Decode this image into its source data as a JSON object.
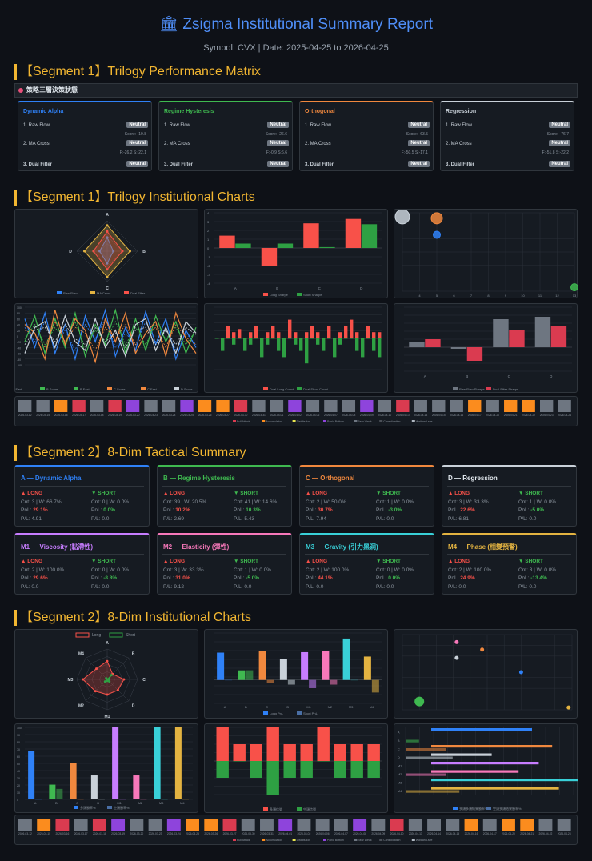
{
  "report": {
    "icon": "bank-icon",
    "title": "Zsigma Institutional Summary Report",
    "subtitle": "Symbol: CVX | Date: 2025-04-25 to 2026-04-25"
  },
  "sections": {
    "s1": "【Segment 1】Trilogy Performance Matrix",
    "s2": "【Segment 1】Trilogy Institutional Charts",
    "s3": "【Segment 2】8-Dim Tactical Summary",
    "s4": "【Segment 2】8-Dim Institutional Charts"
  },
  "matrix_bar": "策略三層決策狀態",
  "colors": {
    "A": "#2f81f7",
    "B": "#3fb950",
    "C": "#f0883e",
    "D": "#c9d1d9",
    "M1": "#c77dff",
    "M2": "#f778ba",
    "M3": "#39d0d8",
    "M4": "#e3b341",
    "long": "#f85149",
    "short": "#3fb950"
  },
  "matrix": [
    {
      "name": "Dynamic Alpha",
      "rows": [
        {
          "label": "1. Raw Flow",
          "badge": "Neutral"
        },
        {
          "label": "2. MA Cross",
          "badge": "Neutral"
        },
        {
          "label": "3. Dual Filter",
          "badge": "Neutral"
        }
      ],
      "sub1": "Score: -19.8",
      "sub2": "F:-26.2 S:-22.1"
    },
    {
      "name": "Regime Hysteresis",
      "rows": [
        {
          "label": "1. Raw Flow",
          "badge": "Neutral"
        },
        {
          "label": "2. MA Cross",
          "badge": "Neutral"
        },
        {
          "label": "3. Dual Filter",
          "badge": "Neutral"
        }
      ],
      "sub1": "Score: -26.6",
      "sub2": "F:-0.9 S:6.6"
    },
    {
      "name": "Orthogonal",
      "rows": [
        {
          "label": "1. Raw Flow",
          "badge": "Neutral"
        },
        {
          "label": "2. MA Cross",
          "badge": "Neutral"
        },
        {
          "label": "3. Dual Filter",
          "badge": "Neutral"
        }
      ],
      "sub1": "Score: -63.5",
      "sub2": "F:-50.5 S:-17.1"
    },
    {
      "name": "Regression",
      "rows": [
        {
          "label": "1. Raw Flow",
          "badge": "Neutral"
        },
        {
          "label": "2. MA Cross",
          "badge": "Neutral"
        },
        {
          "label": "3. Dual Filter",
          "badge": "Neutral"
        }
      ],
      "sub1": "Score: -76.7",
      "sub2": "F:-51.8 S:-22.2"
    }
  ],
  "tactical": [
    {
      "name": "A — Dynamic Alpha",
      "long": {
        "cnt": "Cnt: 3 | W: 66.7%",
        "pnl": "29.1%",
        "pf": "P/L: 4.91"
      },
      "short": {
        "cnt": "Cnt: 0 | W: 0.0%",
        "pnl": "0.0%",
        "pf": "P/L: 0.0"
      }
    },
    {
      "name": "B — Regime Hysteresis",
      "long": {
        "cnt": "Cnt: 39 | W: 20.5%",
        "pnl": "10.2%",
        "pf": "P/L: 2.69"
      },
      "short": {
        "cnt": "Cnt: 41 | W: 14.6%",
        "pnl": "10.3%",
        "pf": "P/L: 5.43"
      }
    },
    {
      "name": "C — Orthogonal",
      "long": {
        "cnt": "Cnt: 2 | W: 50.0%",
        "pnl": "30.7%",
        "pf": "P/L: 7.94"
      },
      "short": {
        "cnt": "Cnt: 1 | W: 0.0%",
        "pnl": "-3.0%",
        "pf": "P/L: 0.0"
      }
    },
    {
      "name": "D — Regression",
      "long": {
        "cnt": "Cnt: 3 | W: 33.3%",
        "pnl": "22.6%",
        "pf": "P/L: 6.81"
      },
      "short": {
        "cnt": "Cnt: 1 | W: 0.0%",
        "pnl": "-5.0%",
        "pf": "P/L: 0.0"
      }
    },
    {
      "name": "M1 — Viscosity (黏滯性)",
      "long": {
        "cnt": "Cnt: 2 | W: 100.0%",
        "pnl": "29.6%",
        "pf": "P/L: 0.0"
      },
      "short": {
        "cnt": "Cnt: 0 | W: 0.0%",
        "pnl": "-8.8%",
        "pf": "P/L: 0.0"
      }
    },
    {
      "name": "M2 — Elasticity (彈性)",
      "long": {
        "cnt": "Cnt: 3 | W: 33.3%",
        "pnl": "31.0%",
        "pf": "P/L: 9.12"
      },
      "short": {
        "cnt": "Cnt: 1 | W: 0.0%",
        "pnl": "-5.0%",
        "pf": "P/L: 0.0"
      }
    },
    {
      "name": "M3 — Gravity (引力黑洞)",
      "long": {
        "cnt": "Cnt: 2 | W: 100.0%",
        "pnl": "44.1%",
        "pf": "P/L: 0.0"
      },
      "short": {
        "cnt": "Cnt: 0 | W: 0.0%",
        "pnl": "0.0%",
        "pf": "P/L: 0.0"
      }
    },
    {
      "name": "M4 — Phase (相變預警)",
      "long": {
        "cnt": "Cnt: 2 | W: 100.0%",
        "pnl": "24.9%",
        "pf": "P/L: 0.0"
      },
      "short": {
        "cnt": "Cnt: 3 | W: 0.0%",
        "pnl": "-13.4%",
        "pf": "P/L: 0.0"
      }
    }
  ],
  "labels": {
    "long": "▲ LONG",
    "short": "▼ SHORT",
    "pnl": "PnL: "
  },
  "chart_data": [
    {
      "id": "radar1",
      "type": "radar",
      "axes": [
        "A",
        "B",
        "C",
        "D"
      ],
      "series": [
        {
          "name": "Raw Flow",
          "values": [
            45,
            20,
            40,
            25
          ]
        },
        {
          "name": "MA Cross",
          "values": [
            85,
            75,
            85,
            75
          ]
        },
        {
          "name": "Dual Filter",
          "values": [
            65,
            50,
            60,
            45
          ]
        }
      ],
      "ylim": [
        0,
        100
      ]
    },
    {
      "id": "bar1",
      "type": "bar",
      "categories": [
        "A",
        "B",
        "C",
        "D"
      ],
      "series": [
        {
          "name": "Long Sharpe",
          "values": [
            1.4,
            -2.0,
            2.8,
            3.3
          ]
        },
        {
          "name": "Short Sharpe",
          "values": [
            0.5,
            0.5,
            0.1,
            2.7
          ]
        }
      ],
      "ylim": [
        -4,
        4
      ],
      "yticks": [
        "4",
        "3",
        "2",
        "1",
        "0",
        "-1",
        "-2",
        "-3",
        "-4"
      ]
    },
    {
      "id": "scatter1",
      "type": "scatter",
      "points": [
        {
          "x": 3,
          "y": 95,
          "size": 18
        },
        {
          "x": 5,
          "y": 93,
          "size": 14
        },
        {
          "x": 5,
          "y": 72,
          "size": 9
        },
        {
          "x": 13,
          "y": 5,
          "size": 9
        }
      ],
      "xticks": [
        "4",
        "5",
        "6",
        "7",
        "8",
        "9",
        "10",
        "11",
        "12",
        "13"
      ]
    },
    {
      "id": "line1",
      "type": "line",
      "series": [
        {
          "name": "A Score",
          "values": [
            60,
            -40,
            80,
            -60,
            40,
            -80,
            70,
            -20,
            90,
            -70,
            30,
            -50,
            85,
            -30,
            60,
            -80,
            20,
            -40
          ]
        },
        {
          "name": "A Fast",
          "values": [
            30,
            -20,
            50,
            -40,
            20,
            -50,
            40,
            -10,
            60,
            -40,
            10,
            -30,
            50,
            -20,
            30,
            -50,
            10,
            -30
          ]
        },
        {
          "name": "B Score",
          "values": [
            -20,
            70,
            -60,
            60,
            -40,
            80,
            -70,
            40,
            -30,
            90,
            -60,
            60,
            -50,
            70,
            -20,
            50,
            -60,
            30
          ]
        },
        {
          "name": "B Fast",
          "values": [
            -10,
            40,
            -30,
            30,
            -20,
            50,
            -40,
            20,
            -20,
            50,
            -30,
            30,
            -30,
            40,
            -10,
            30,
            -30,
            20
          ]
        },
        {
          "name": "C Score",
          "values": [
            40,
            10,
            -80,
            90,
            -30,
            60,
            20,
            -90,
            60,
            -20,
            80,
            -60,
            10,
            50,
            -70,
            80,
            -10,
            -60
          ]
        },
        {
          "name": "C Fast",
          "values": [
            20,
            5,
            -40,
            50,
            -20,
            30,
            10,
            -50,
            30,
            -10,
            40,
            -30,
            5,
            30,
            -40,
            40,
            -5,
            -30
          ]
        },
        {
          "name": "D Score",
          "values": [
            -60,
            30,
            50,
            -40,
            70,
            -20,
            -50,
            60,
            -40,
            20,
            -70,
            40,
            60,
            -50,
            30,
            -60,
            50,
            10
          ]
        },
        {
          "name": "D Fast",
          "values": [
            -30,
            20,
            30,
            -20,
            40,
            -10,
            -30,
            30,
            -20,
            10,
            -40,
            20,
            30,
            -30,
            20,
            -30,
            30,
            5
          ]
        }
      ],
      "ylim": [
        -100,
        100
      ]
    },
    {
      "id": "bar2",
      "type": "bar",
      "series": [
        {
          "name": "Dual Long Count",
          "values": [
            0,
            0,
            2,
            1,
            1.5,
            0,
            1,
            2,
            0,
            1,
            2,
            1,
            0,
            3,
            1,
            0,
            1,
            2,
            1,
            0,
            2,
            0,
            1,
            2,
            3,
            1,
            0,
            2,
            1,
            1
          ]
        },
        {
          "name": "Dual Short Count",
          "values": [
            0,
            -2,
            0,
            -1,
            0,
            -2,
            -1,
            0,
            -3,
            -1,
            0,
            -2,
            -3,
            0,
            -1,
            -2,
            -4,
            0,
            -1,
            -2,
            0,
            -3,
            -1,
            0,
            0,
            -2,
            -3,
            0,
            -2,
            -3
          ]
        }
      ],
      "ylim": [
        -5,
        5
      ]
    },
    {
      "id": "bar3",
      "type": "bar",
      "categories": [
        "A",
        "B",
        "C",
        "D"
      ],
      "series": [
        {
          "name": "Raw Flow Sharpe",
          "values": [
            0.6,
            -0.2,
            3.5,
            3.8
          ]
        },
        {
          "name": "Dual Filter Sharpe",
          "values": [
            1.0,
            -1.7,
            2.2,
            2.6
          ]
        }
      ],
      "ylim": [
        -3,
        5
      ]
    },
    {
      "id": "heat1",
      "type": "heatmap",
      "legend": [
        "Bull Attack",
        "Accumulation",
        "Distribution",
        "Panic Bottom",
        "Bear Weak",
        "Consolidation",
        "Wait-and-see"
      ],
      "legend_colors": [
        "#da3b50",
        "#fb8c1e",
        "#e9e64f",
        "#8e44dc",
        "#6e7681",
        "#4a4f57",
        "#b0b8c1"
      ],
      "cells": [
        "#6e7681",
        "#6e7681",
        "#fb8c1e",
        "#da3b50",
        "#6e7681",
        "#da3b50",
        "#8e44dc",
        "#6e7681",
        "#6e7681",
        "#8e44dc",
        "#fb8c1e",
        "#fb8c1e",
        "#da3b50",
        "#6e7681",
        "#6e7681",
        "#8e44dc",
        "#6e7681",
        "#6e7681",
        "#6e7681",
        "#8e44dc",
        "#6e7681",
        "#da3b50",
        "#6e7681",
        "#6e7681",
        "#6e7681",
        "#fb8c1e",
        "#6e7681",
        "#fb8c1e",
        "#fb8c1e",
        "#6e7681",
        "#6e7681"
      ],
      "dates": [
        "2026-03-12",
        "2026-03-15",
        "2026-03-16",
        "2026-03-17",
        "2026-03-18",
        "2026-03-19",
        "2026-03-20",
        "2026-03-23",
        "2026-03-24",
        "2026-03-25",
        "2026-03-26",
        "2026-03-27",
        "2026-03-30",
        "2026-03-31",
        "2026-04-01",
        "2026-04-02",
        "2026-04-06",
        "2026-04-07",
        "2026-04-08",
        "2026-04-09",
        "2026-04-10",
        "2026-04-13",
        "2026-04-14",
        "2026-04-15",
        "2026-04-16",
        "2026-04-17",
        "2026-04-20",
        "2026-04-21",
        "2026-04-22",
        "2026-04-23",
        "2026-04-24"
      ]
    },
    {
      "id": "radar2",
      "type": "radar",
      "axes": [
        "A",
        "B",
        "C",
        "D",
        "M1",
        "M2",
        "M3",
        "M4"
      ],
      "legend": [
        "Long",
        "Short"
      ],
      "series": [
        {
          "name": "Long",
          "values": [
            60,
            25,
            55,
            50,
            50,
            55,
            80,
            50
          ]
        },
        {
          "name": "Short",
          "values": [
            0,
            20,
            5,
            10,
            5,
            10,
            0,
            5
          ]
        }
      ],
      "ylim": [
        0,
        100
      ]
    },
    {
      "id": "bar4",
      "type": "bar",
      "categories": [
        "A",
        "B",
        "C",
        "D",
        "M1",
        "M2",
        "M3",
        "M4"
      ],
      "series": [
        {
          "name": "Long PnL",
          "values": [
            29.1,
            10.2,
            30.7,
            22.6,
            29.6,
            31.0,
            44.1,
            24.9
          ]
        },
        {
          "name": "Short PnL",
          "values": [
            0,
            10.3,
            -3.0,
            -5.0,
            -8.8,
            -5.0,
            0,
            -13.4
          ]
        }
      ],
      "ylim": [
        -25,
        50
      ]
    },
    {
      "id": "scatter2",
      "type": "scatter",
      "points": [
        {
          "x": 10,
          "y": 11,
          "size": 12
        },
        {
          "x": 32,
          "y": 90,
          "size": 5
        },
        {
          "x": 32,
          "y": 69,
          "size": 5
        },
        {
          "x": 47,
          "y": 80,
          "size": 5
        },
        {
          "x": 70,
          "y": 50,
          "size": 5
        },
        {
          "x": 98,
          "y": 3,
          "size": 5
        }
      ],
      "colors": [
        "#3fb950",
        "#f778ba",
        "#c9d1d9",
        "#f0883e",
        "#2f81f7",
        "#e3b341"
      ]
    },
    {
      "id": "bar5",
      "type": "bar",
      "categories": [
        "A",
        "B",
        "C",
        "D",
        "M1",
        "M2",
        "M3",
        "M4"
      ],
      "series": [
        {
          "name": "多頭勝率%",
          "values": [
            66.7,
            20.5,
            50.0,
            33.3,
            100.0,
            33.3,
            100.0,
            100.0
          ]
        },
        {
          "name": "空頭勝率%",
          "values": [
            0,
            14.6,
            0,
            0,
            0,
            0,
            0,
            0
          ]
        }
      ],
      "ylim": [
        0,
        100
      ]
    },
    {
      "id": "bar6",
      "type": "bar",
      "series": [
        {
          "name": "多頭信號",
          "values": [
            2,
            1,
            1,
            2,
            1,
            1,
            2,
            1,
            1,
            1
          ]
        },
        {
          "name": "空頭信號",
          "values": [
            -1,
            0,
            -1,
            -2,
            -1,
            -1,
            0,
            -1,
            -1,
            -1
          ]
        }
      ],
      "ylim": [
        -2,
        2
      ]
    },
    {
      "id": "hbar1",
      "type": "bar",
      "categories": [
        "A",
        "B",
        "C",
        "D",
        "M1",
        "M2",
        "M3",
        "M4"
      ],
      "series": [
        {
          "name": "多頭多頭結果勝率%",
          "values": [
            15,
            0,
            18,
            9,
            16,
            13,
            24,
            19
          ]
        },
        {
          "name": "空頭多頭結果勝率%",
          "values": [
            0,
            2,
            6,
            7,
            0,
            6,
            0,
            8
          ]
        }
      ],
      "xlim": [
        0,
        25
      ]
    },
    {
      "id": "heat2",
      "type": "heatmap",
      "legend": [
        "Bull Attack",
        "Accumulation",
        "Distribution",
        "Panic Bottom",
        "Bear Weak",
        "Consolidation",
        "Wait-and-see"
      ],
      "legend_colors": [
        "#da3b50",
        "#fb8c1e",
        "#e9e64f",
        "#8e44dc",
        "#6e7681",
        "#4a4f57",
        "#b0b8c1"
      ],
      "cells": [
        "#6e7681",
        "#fb8c1e",
        "#da3b50",
        "#6e7681",
        "#da3b50",
        "#8e44dc",
        "#6e7681",
        "#6e7681",
        "#8e44dc",
        "#fb8c1e",
        "#fb8c1e",
        "#da3b50",
        "#6e7681",
        "#6e7681",
        "#8e44dc",
        "#6e7681",
        "#6e7681",
        "#6e7681",
        "#8e44dc",
        "#6e7681",
        "#da3b50",
        "#6e7681",
        "#6e7681",
        "#6e7681",
        "#fb8c1e",
        "#6e7681",
        "#fb8c1e",
        "#fb8c1e",
        "#6e7681",
        "#6e7681"
      ],
      "dates": [
        "2026-03-12",
        "2026-03-15",
        "2026-03-16",
        "2026-03-17",
        "2026-03-18",
        "2026-03-19",
        "2026-03-20",
        "2026-03-23",
        "2026-03-24",
        "2026-03-25",
        "2026-03-26",
        "2026-03-27",
        "2026-03-30",
        "2026-03-31",
        "2026-04-01",
        "2026-04-02",
        "2026-04-06",
        "2026-04-07",
        "2026-04-08",
        "2026-04-09",
        "2026-04-10",
        "2026-04-13",
        "2026-04-14",
        "2026-04-15",
        "2026-04-16",
        "2026-04-17",
        "2026-04-20",
        "2026-04-21",
        "2026-04-22",
        "2026-04-23"
      ]
    }
  ]
}
